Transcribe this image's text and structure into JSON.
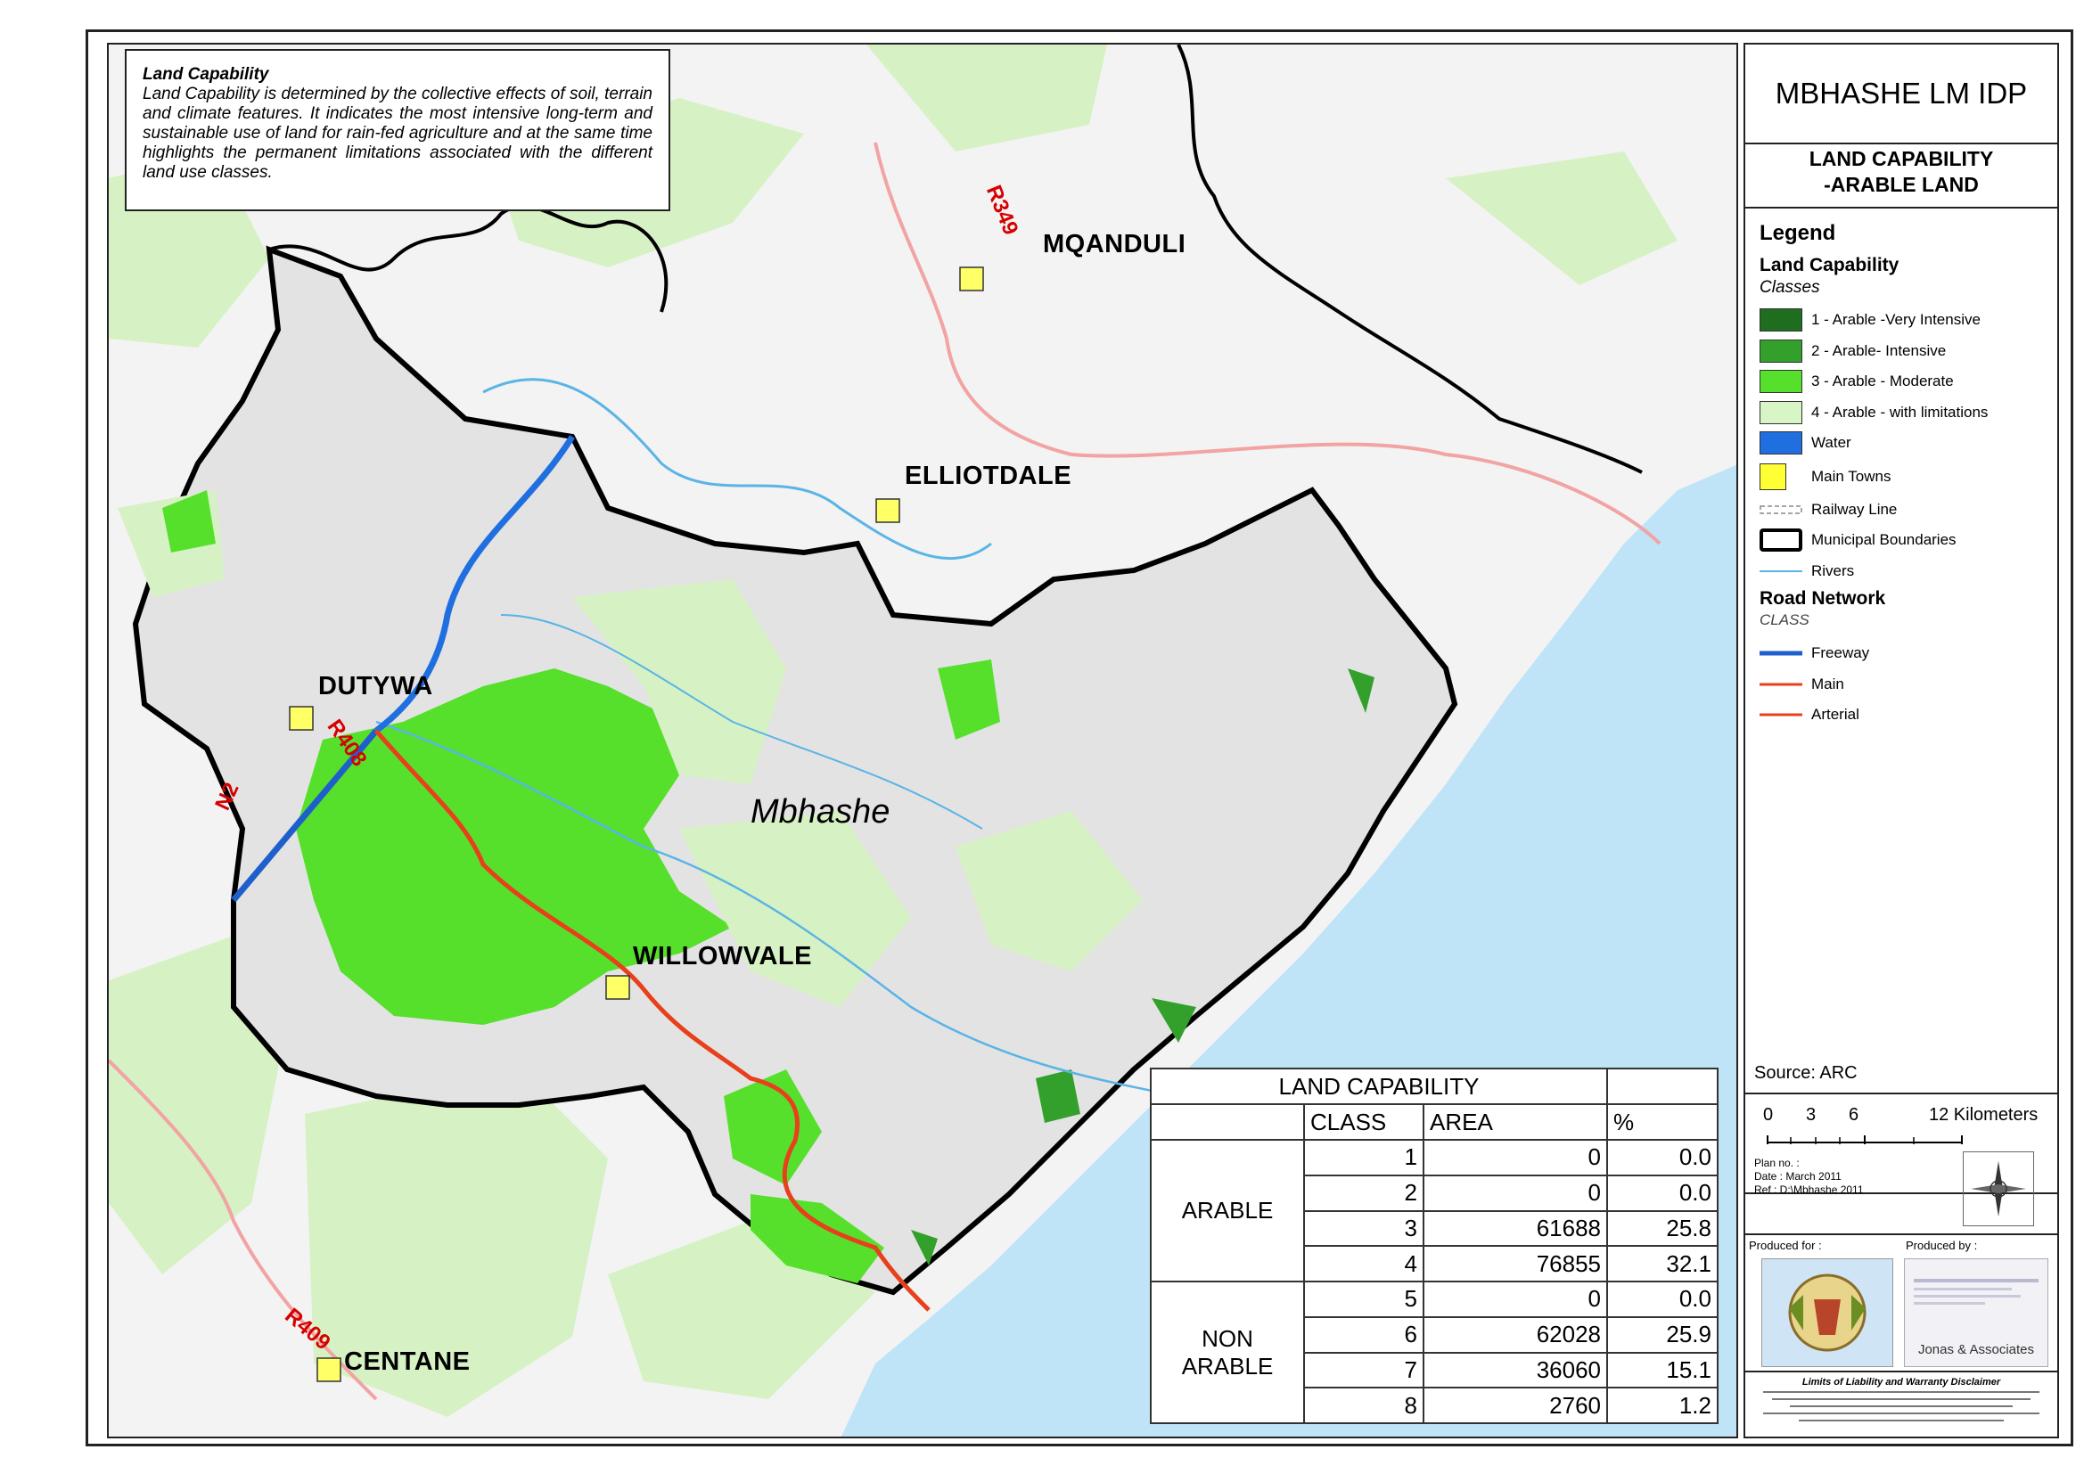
{
  "map": {
    "note_title": "Land Capability",
    "note_body": "Land Capability is determined by the collective effects of soil, terrain and climate features. It indicates the most intensive long-term and sustainable use of land for rain-fed agriculture and at the same time highlights the permanent limitations associated with the different land use classes.",
    "towns": [
      "MQANDULI",
      "ELLIOTDALE",
      "DUTYWA",
      "WILLOWVALE",
      "CENTANE"
    ],
    "roads": [
      "R349",
      "R408",
      "N2",
      "R409"
    ],
    "area_label": "Mbhashe"
  },
  "side": {
    "title": "MBHASHE LM IDP",
    "subtitle_1": "LAND CAPABILITY",
    "subtitle_2": "-ARABLE LAND",
    "legend_heading": "Legend",
    "land_capability_heading": "Land Capability",
    "classes_label": "Classes",
    "legend_items": [
      {
        "label": "1 - Arable -Very Intensive",
        "color": "#1f6e1f"
      },
      {
        "label": "2 - Arable- Intensive",
        "color": "#33a02c"
      },
      {
        "label": "3 - Arable - Moderate",
        "color": "#57e02b"
      },
      {
        "label": "4 - Arable - with limitations",
        "color": "#d8f5c6"
      },
      {
        "label": "Water",
        "color": "#1f6fe0"
      },
      {
        "label": "Main Towns",
        "color": "#ffff33"
      },
      {
        "label": "Railway Line",
        "color": "#999999"
      },
      {
        "label": "Municipal Boundaries",
        "color": "#000000"
      },
      {
        "label": "Rivers",
        "color": "#5ab4e6"
      }
    ],
    "road_network_heading": "Road Network",
    "class_label": "CLASS",
    "road_items": [
      {
        "label": "Freeway",
        "color": "#1f5fcc"
      },
      {
        "label": "Main",
        "color": "#e8401c"
      },
      {
        "label": "Arterial",
        "color": "#e8401c"
      }
    ],
    "source": "Source: ARC",
    "scale_ticks": [
      "0",
      "3",
      "6",
      "12 Kilometers"
    ],
    "plan_no": "Plan no. :",
    "plan_date": "Date : March 2011",
    "plan_ref": "Ref : D:\\Mbhashe 2011",
    "produced_for": "Produced for :",
    "produced_by": "Produced by :",
    "producer_name": "Jonas & Associates",
    "disclaimer_title": "Limits of Liability and Warranty Disclaimer"
  },
  "table": {
    "title": "LAND CAPABILITY",
    "headers": [
      "CLASS",
      "AREA",
      "%"
    ],
    "groups": [
      {
        "name": "ARABLE",
        "rows": [
          [
            "1",
            "0",
            "0.0"
          ],
          [
            "2",
            "0",
            "0.0"
          ],
          [
            "3",
            "61688",
            "25.8"
          ],
          [
            "4",
            "76855",
            "32.1"
          ]
        ]
      },
      {
        "name": "NON ARABLE",
        "rows": [
          [
            "5",
            "0",
            "0.0"
          ],
          [
            "6",
            "62028",
            "25.9"
          ],
          [
            "7",
            "36060",
            "15.1"
          ],
          [
            "8",
            "2760",
            "1.2"
          ]
        ]
      }
    ]
  }
}
